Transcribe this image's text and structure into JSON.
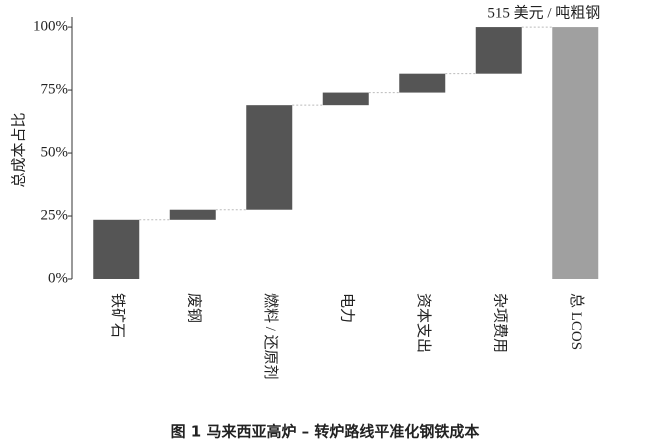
{
  "chart_data": {
    "type": "waterfall",
    "y_label": "总成本占比",
    "categories": [
      "铁矿石",
      "废钢",
      "燃料 / 还原剂",
      "电力",
      "资本支出",
      "杂项费用"
    ],
    "values": [
      23.5,
      4,
      41.5,
      5,
      7.5,
      18.5
    ],
    "color": "#555555",
    "total": {
      "category": "总 LCOS",
      "value": 100,
      "color": "#a0a0a0",
      "annotation": "515 美元 / 吨粗钢"
    },
    "ylim": [
      0,
      104
    ],
    "yticks": [
      {
        "value": 0,
        "label": "0%"
      },
      {
        "value": 25,
        "label": "25%"
      },
      {
        "value": 50,
        "label": "50%"
      },
      {
        "value": 75,
        "label": "75%"
      },
      {
        "value": 100,
        "label": "100%"
      }
    ],
    "caption": "图 1  马来西亚高炉 – 转炉路线平准化钢铁成本"
  }
}
